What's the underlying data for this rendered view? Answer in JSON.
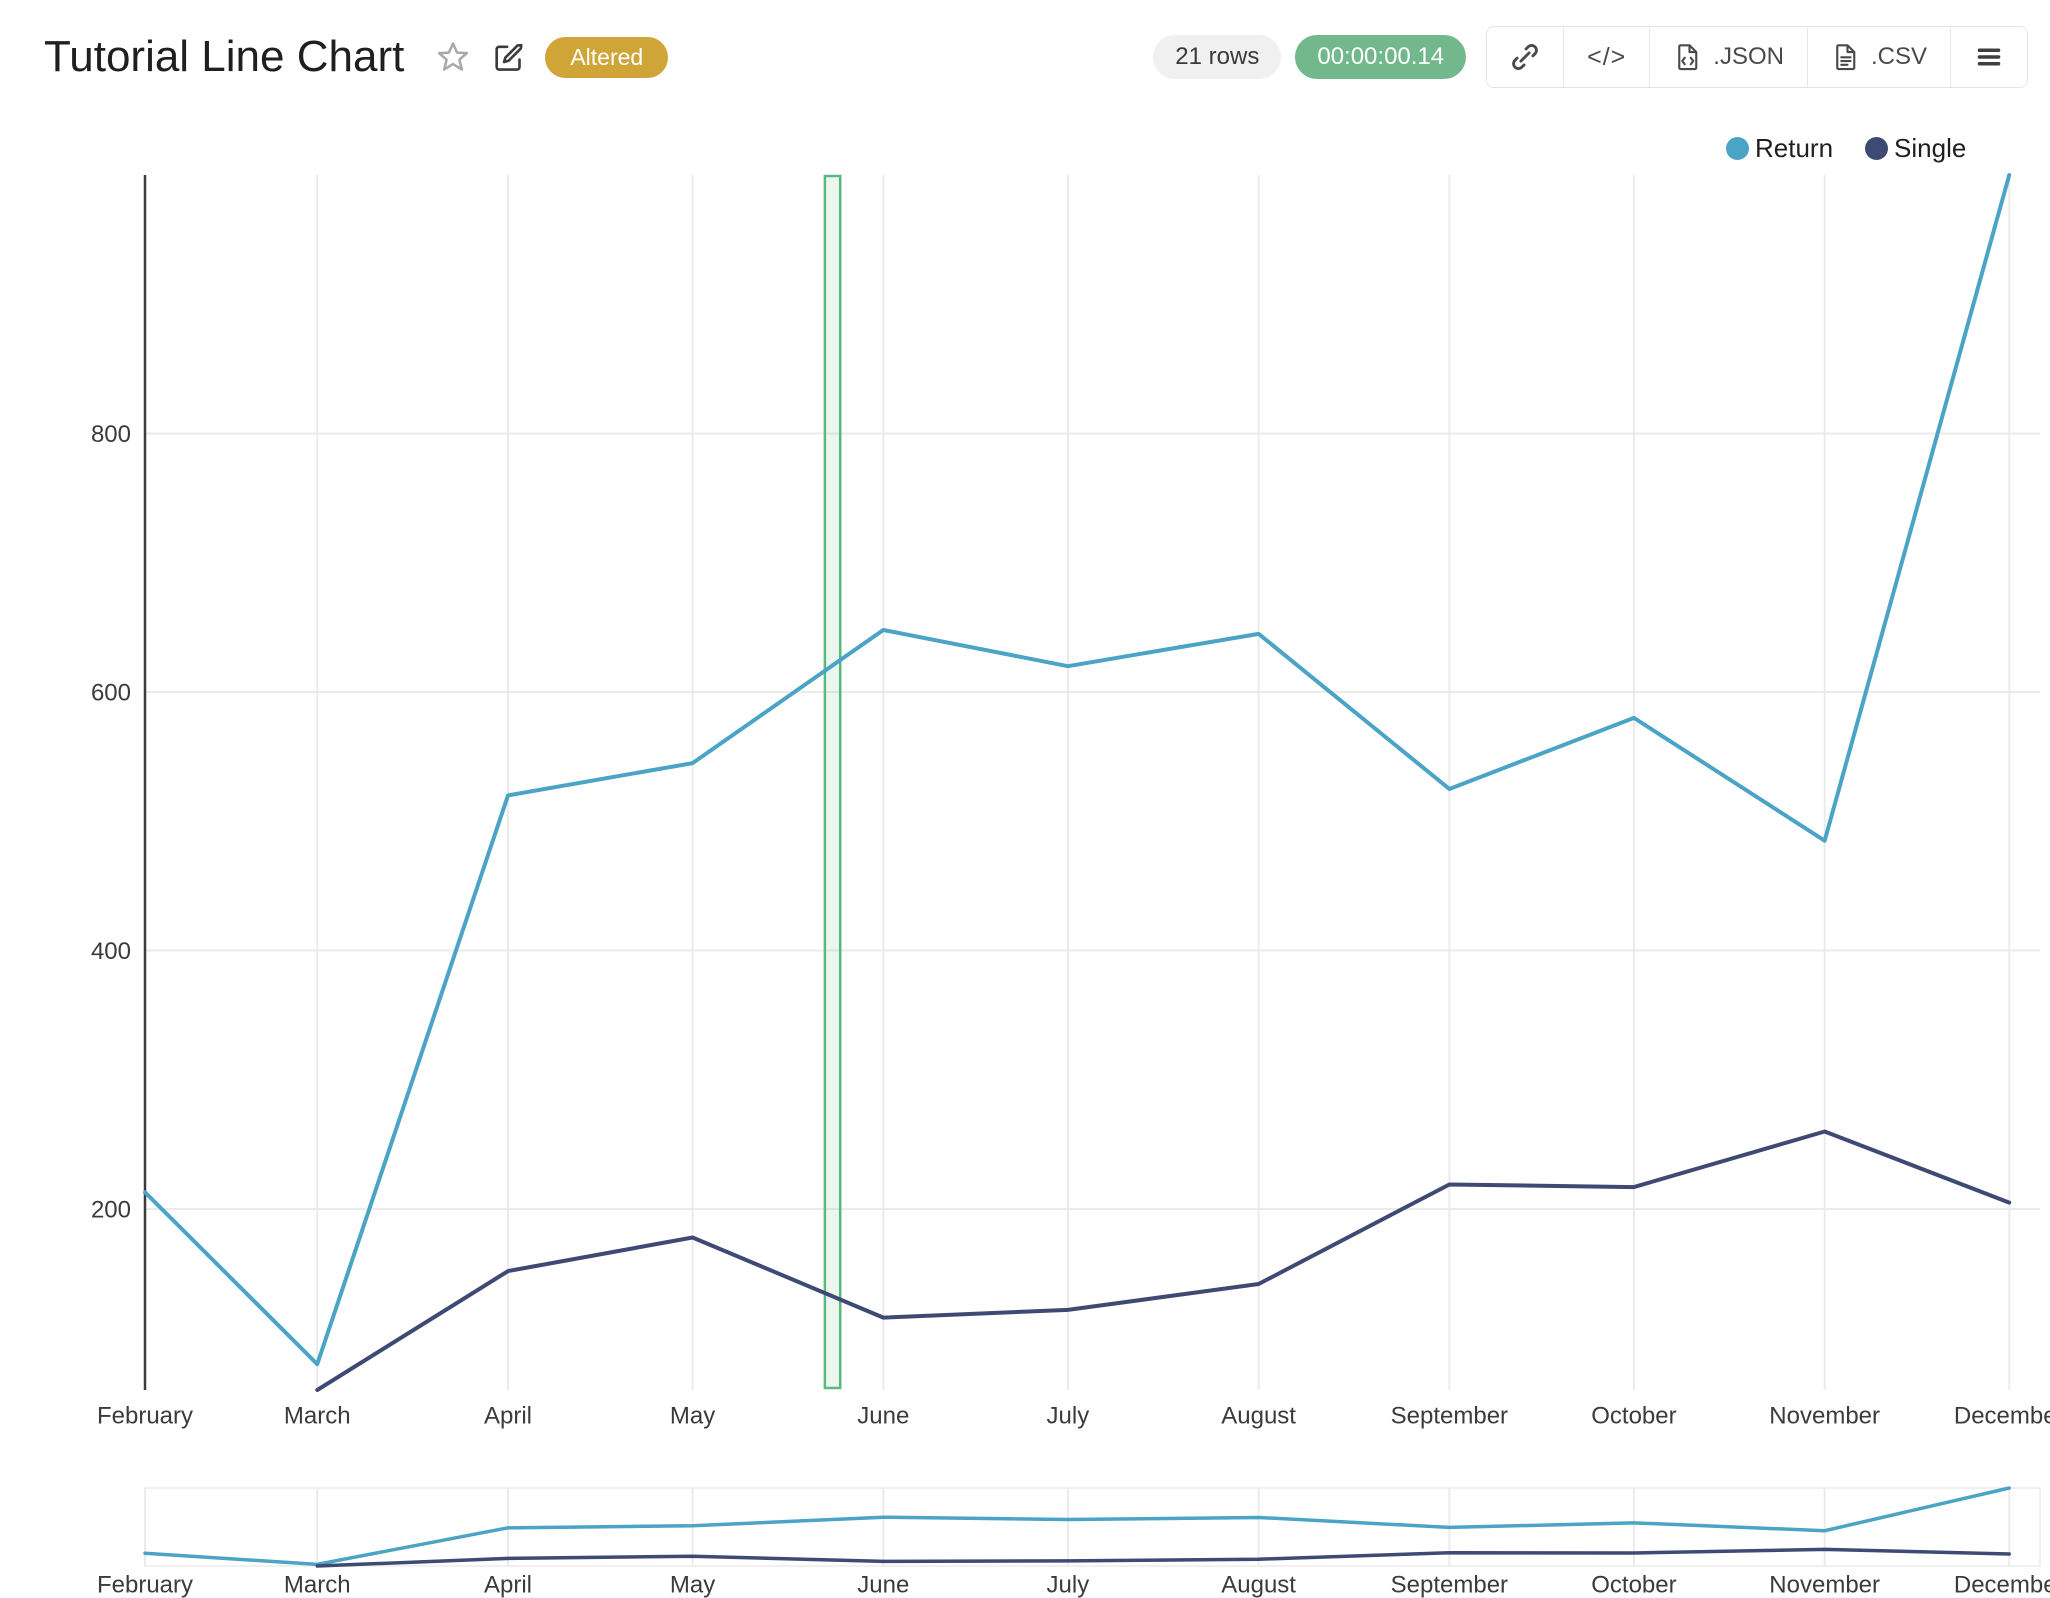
{
  "header": {
    "title": "Tutorial Line Chart",
    "altered_badge": "Altered",
    "rows_badge": "21 rows",
    "runtime_badge": "00:00:00.14",
    "embed_button_label": "</>",
    "json_button_label": ".JSON",
    "csv_button_label": ".CSV"
  },
  "colors": {
    "altered_badge_bg": "#D0A538",
    "rows_badge_bg": "#F0F0F0",
    "runtime_badge_bg": "#73B88C",
    "grid_line": "#EBEBEB",
    "axis_line": "#3C3C3C",
    "mini_border": "#ECECEC"
  },
  "chart_data": {
    "type": "line",
    "x": [
      "February",
      "March",
      "April",
      "May",
      "June",
      "July",
      "August",
      "September",
      "October",
      "November",
      "December"
    ],
    "x_day_offsets": [
      0,
      28,
      59,
      89,
      120,
      150,
      181,
      212,
      242,
      273,
      303
    ],
    "x_axis_end_day": 308,
    "series": [
      {
        "name": "Return",
        "color": "#4BA3C5",
        "values": [
          213,
          80,
          520,
          545,
          648,
          620,
          645,
          525,
          580,
          485,
          1000
        ]
      },
      {
        "name": "Single",
        "color": "#3E4A73",
        "values": [
          null,
          60,
          152,
          178,
          116,
          122,
          142,
          219,
          217,
          260,
          205
        ]
      }
    ],
    "yticks": [
      200,
      400,
      600,
      800
    ],
    "ylim": [
      60,
      1000
    ],
    "grid": true,
    "legend_position": "top-right",
    "highlight_band": {
      "start_day": 110.5,
      "end_day": 113,
      "stroke": "#5AB97D",
      "fill": "rgba(90,185,125,0.13)"
    },
    "has_range_slider": true
  }
}
